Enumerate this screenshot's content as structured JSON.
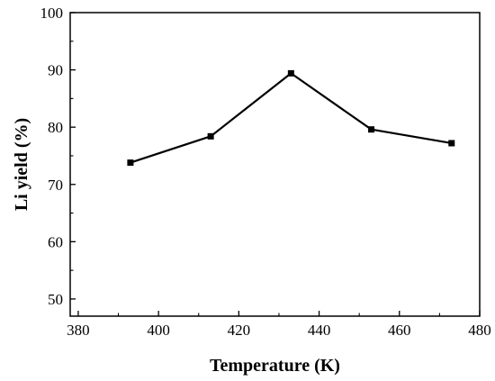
{
  "chart_data": {
    "type": "line",
    "title": "",
    "xlabel": "Temperature (K)",
    "ylabel": "Li yield (%)",
    "xlim": [
      378,
      480
    ],
    "ylim": [
      47,
      100
    ],
    "x_ticks": [
      380,
      400,
      420,
      440,
      460,
      480
    ],
    "y_ticks": [
      50,
      60,
      70,
      80,
      90,
      100
    ],
    "grid": false,
    "legend": "none",
    "series": [
      {
        "marker": "square",
        "color": "#000000",
        "x": [
          393,
          413,
          433,
          453,
          473
        ],
        "y": [
          73.8,
          78.4,
          89.4,
          79.6,
          77.2
        ]
      }
    ]
  }
}
